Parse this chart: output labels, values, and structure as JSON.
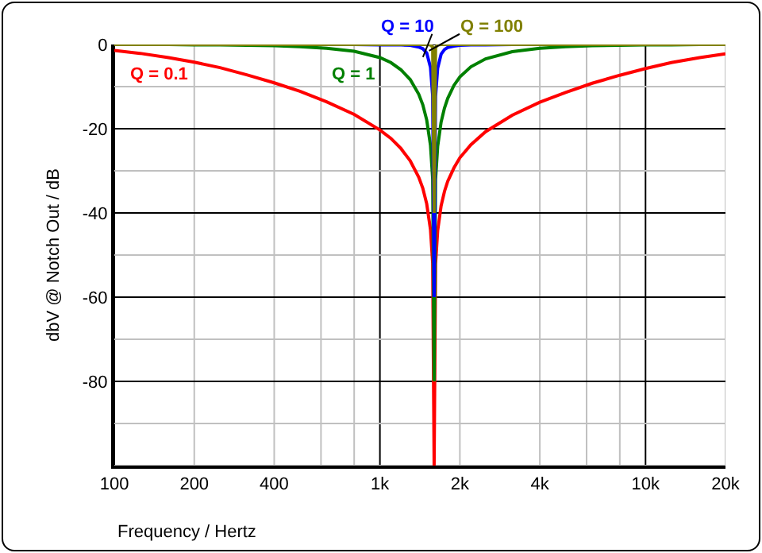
{
  "chart_data": {
    "type": "line",
    "xlabel": "Frequency / Hertz",
    "ylabel": "dbV @ Notch Out / dB",
    "log": "x",
    "x": [
      100,
      125,
      160,
      200,
      250,
      315,
      400,
      500,
      630,
      800,
      1000,
      1100,
      1200,
      1300,
      1400,
      1450,
      1500,
      1550,
      1580,
      1600,
      1620,
      1650,
      1700,
      1750,
      1800,
      1900,
      2000,
      2200,
      2500,
      3150,
      4000,
      5000,
      6300,
      8000,
      10000,
      12500,
      16000,
      20000
    ],
    "series": [
      {
        "name": "Q = 0.1",
        "color": "#ff0000",
        "values": [
          -1.4,
          -2.1,
          -3.1,
          -4.2,
          -5.5,
          -7.2,
          -9.1,
          -11.1,
          -13.6,
          -16.6,
          -20.3,
          -22.3,
          -24.7,
          -27.6,
          -31.5,
          -34.1,
          -37.8,
          -43.9,
          -51.9,
          -100,
          -52.1,
          -44.2,
          -38.3,
          -34.9,
          -32.5,
          -29.3,
          -26.9,
          -23.8,
          -20.7,
          -16.8,
          -13.7,
          -11.4,
          -9.2,
          -7.3,
          -5.7,
          -4.3,
          -3.1,
          -2.2
        ]
      },
      {
        "name": "Q = 1",
        "color": "#008000",
        "values": [
          null,
          null,
          0,
          -0.1,
          -0.1,
          -0.2,
          -0.3,
          -0.5,
          -0.9,
          -1.6,
          -3.1,
          -4.3,
          -6.0,
          -8.3,
          -11.8,
          -14.3,
          -17.9,
          -23.9,
          -31.9,
          -80,
          -32.1,
          -24.2,
          -18.4,
          -15.1,
          -12.8,
          -9.7,
          -7.7,
          -5.3,
          -3.4,
          -1.7,
          -0.9,
          -0.5,
          -0.3,
          -0.2,
          -0.1,
          -0.1,
          0,
          0
        ]
      },
      {
        "name": "Q = 10",
        "color": "#0000ff",
        "values": [
          null,
          null,
          null,
          null,
          null,
          null,
          null,
          null,
          null,
          0,
          -0.1,
          -0.1,
          -0.1,
          -0.2,
          -0.6,
          -1.0,
          -2.0,
          -5.4,
          -12.2,
          -60,
          -12.4,
          -5.6,
          -2.3,
          -1.2,
          -0.7,
          -0.4,
          -0.2,
          -0.1,
          -0.1,
          0,
          null,
          null,
          null,
          null,
          null,
          null,
          null,
          null
        ]
      },
      {
        "name": "Q = 100",
        "color": "#808000",
        "values": [
          0,
          0,
          0,
          0,
          0,
          0,
          0,
          0,
          0,
          0,
          0,
          0,
          0,
          0,
          0,
          0,
          0,
          -0.1,
          -0.6,
          -40,
          -0.7,
          -0.1,
          0,
          0,
          0,
          0,
          0,
          0,
          0,
          0,
          0,
          0,
          0,
          0,
          0,
          0,
          0,
          0
        ]
      }
    ],
    "xlim": [
      100,
      20000
    ],
    "ylim": [
      -100,
      0
    ],
    "xticks": [
      100,
      200,
      400,
      {
        "value": 600,
        "label": null
      },
      {
        "value": 800,
        "label": null
      },
      {
        "value": 1000,
        "label": "1k"
      },
      {
        "value": 2000,
        "label": "2k"
      },
      {
        "value": 4000,
        "label": "4k"
      },
      {
        "value": 6000,
        "label": null
      },
      {
        "value": 8000,
        "label": null
      },
      {
        "value": 10000,
        "label": "10k"
      },
      {
        "value": 20000,
        "label": "20k"
      }
    ],
    "yticks": [
      0,
      {
        "value": -10,
        "label": null
      },
      -20,
      {
        "value": -30,
        "label": null
      },
      -40,
      {
        "value": -50,
        "label": null
      },
      -60,
      {
        "value": -70,
        "label": null
      },
      -80,
      {
        "value": -90,
        "label": null
      },
      {
        "value": -100,
        "label": null
      }
    ],
    "grid": true,
    "legend": false,
    "marker": "none",
    "line_style": "solid"
  }
}
